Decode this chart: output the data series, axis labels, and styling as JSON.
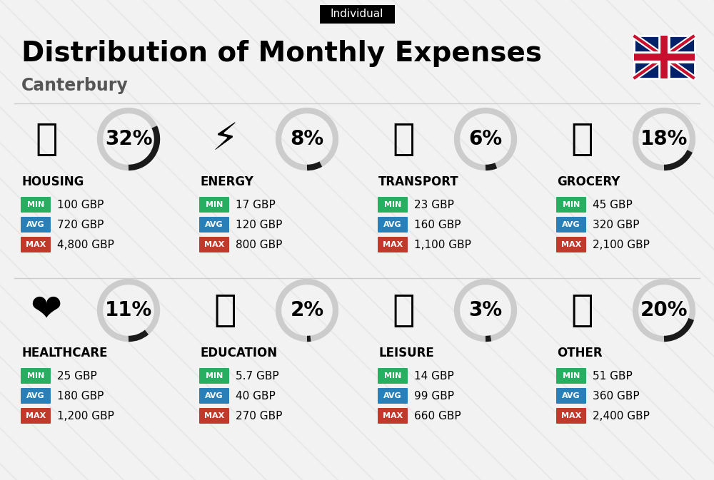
{
  "title": "Distribution of Monthly Expenses",
  "subtitle": "Canterbury",
  "tag": "Individual",
  "bg_color": "#f2f2f2",
  "categories": [
    {
      "name": "HOUSING",
      "pct": 32,
      "min": "100 GBP",
      "avg": "720 GBP",
      "max": "4,800 GBP",
      "row": 0,
      "col": 0
    },
    {
      "name": "ENERGY",
      "pct": 8,
      "min": "17 GBP",
      "avg": "120 GBP",
      "max": "800 GBP",
      "row": 0,
      "col": 1
    },
    {
      "name": "TRANSPORT",
      "pct": 6,
      "min": "23 GBP",
      "avg": "160 GBP",
      "max": "1,100 GBP",
      "row": 0,
      "col": 2
    },
    {
      "name": "GROCERY",
      "pct": 18,
      "min": "45 GBP",
      "avg": "320 GBP",
      "max": "2,100 GBP",
      "row": 0,
      "col": 3
    },
    {
      "name": "HEALTHCARE",
      "pct": 11,
      "min": "25 GBP",
      "avg": "180 GBP",
      "max": "1,200 GBP",
      "row": 1,
      "col": 0
    },
    {
      "name": "EDUCATION",
      "pct": 2,
      "min": "5.7 GBP",
      "avg": "40 GBP",
      "max": "270 GBP",
      "row": 1,
      "col": 1
    },
    {
      "name": "LEISURE",
      "pct": 3,
      "min": "14 GBP",
      "avg": "99 GBP",
      "max": "660 GBP",
      "row": 1,
      "col": 2
    },
    {
      "name": "OTHER",
      "pct": 20,
      "min": "51 GBP",
      "avg": "360 GBP",
      "max": "2,400 GBP",
      "row": 1,
      "col": 3
    }
  ],
  "color_min": "#27ae60",
  "color_avg": "#2980b9",
  "color_max": "#c0392b",
  "color_arc_dark": "#1a1a1a",
  "color_arc_light": "#cccccc",
  "title_fontsize": 28,
  "subtitle_fontsize": 17,
  "tag_fontsize": 11,
  "pct_fontsize": 20,
  "value_fontsize": 11,
  "category_fontsize": 12,
  "badge_label_fontsize": 8
}
